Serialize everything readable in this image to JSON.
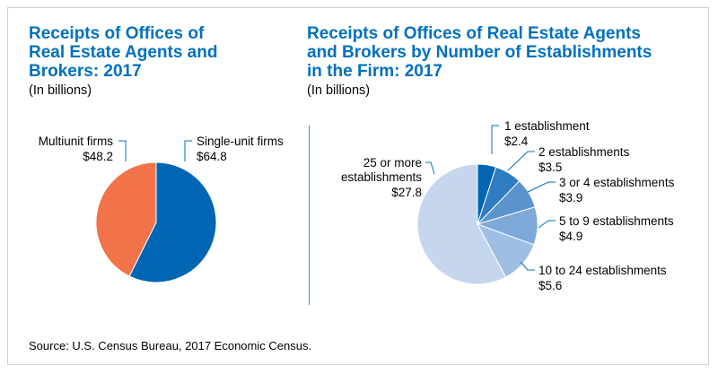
{
  "chart_data": [
    {
      "type": "pie",
      "title": "Receipts of Offices of Real Estate Agents and Brokers: 2017",
      "title_lines": [
        "Receipts of Offices of",
        "Real Estate Agents and",
        "Brokers: 2017"
      ],
      "subtitle": "(In billions)",
      "slices": [
        {
          "label": "Single-unit firms",
          "value": 64.8,
          "value_label": "$64.8",
          "color": "#0066b3"
        },
        {
          "label": "Multiunit firms",
          "value": 48.2,
          "value_label": "$48.2",
          "color": "#f2734a"
        }
      ]
    },
    {
      "type": "pie",
      "title": "Receipts of Offices of Real Estate Agents and Brokers by Number of Establishments in the Firm: 2017",
      "title_lines": [
        "Receipts of Offices of Real Estate Agents",
        "and Brokers by Number of Establishments",
        "in the Firm: 2017"
      ],
      "subtitle": "(In billions)",
      "slices": [
        {
          "label": "1 establishment",
          "value": 2.4,
          "value_label": "$2.4",
          "color": "#0066b3"
        },
        {
          "label": "2 establishments",
          "value": 3.5,
          "value_label": "$3.5",
          "color": "#2f7cc1"
        },
        {
          "label": "3 or 4 establishments",
          "value": 3.9,
          "value_label": "$3.9",
          "color": "#5b93cc"
        },
        {
          "label": "5 to 9 establishments",
          "value": 4.9,
          "value_label": "$4.9",
          "color": "#7ea8d8"
        },
        {
          "label": "10 to 24 establishments",
          "value": 5.6,
          "value_label": "$5.6",
          "color": "#9fbee3"
        },
        {
          "label": "25 or more establishments",
          "label_lines": [
            "25 or more",
            "establishments"
          ],
          "value": 27.8,
          "value_label": "$27.8",
          "color": "#c5d6ee"
        }
      ]
    }
  ],
  "source": "Source: U.S. Census Bureau, 2017 Economic Census."
}
